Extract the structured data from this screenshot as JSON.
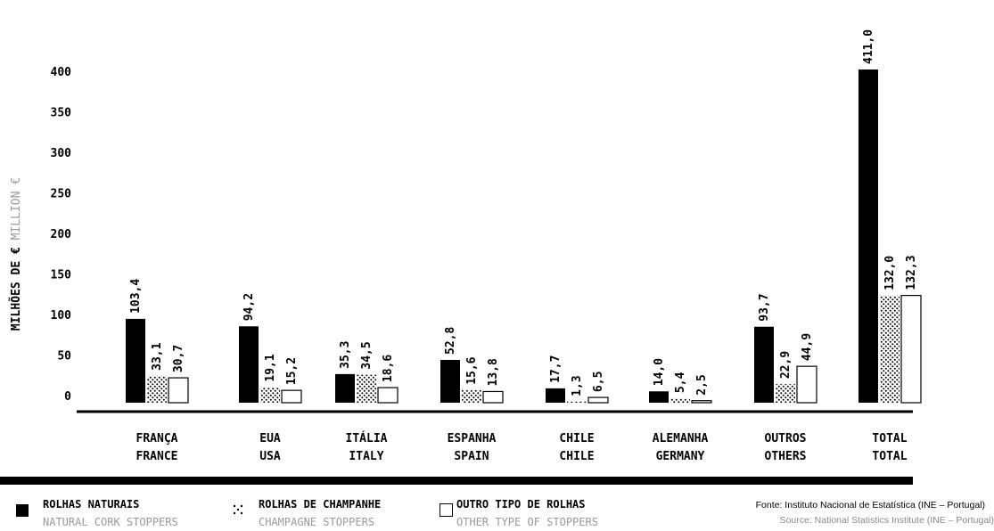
{
  "chart_data": {
    "type": "bar",
    "ylabel": "MILHÕES DE €",
    "ylabel_sub": "MILLION €",
    "ylim": [
      0,
      450
    ],
    "yticks": [
      0,
      50,
      100,
      150,
      200,
      250,
      300,
      350,
      400
    ],
    "categories": [
      "FRANÇA",
      "EUA",
      "ITÁLIA",
      "ESPANHA",
      "CHILE",
      "ALEMANHA",
      "OUTROS",
      "TOTAL"
    ],
    "categories_en": [
      "FRANCE",
      "USA",
      "ITALY",
      "SPAIN",
      "CHILE",
      "GERMANY",
      "OTHERS",
      "TOTAL"
    ],
    "series": [
      {
        "name": "ROLHAS NATURAIS",
        "values": [
          103.4,
          94.2,
          35.3,
          52.8,
          17.7,
          14.0,
          93.7,
          411.0
        ],
        "labels": [
          "103,4",
          "94,2",
          "35,3",
          "52,8",
          "17,7",
          "14,0",
          "93,7",
          "411,0"
        ],
        "color": "#000000"
      },
      {
        "name": "ROLHAS DE CHAMPANHE",
        "values": [
          33.1,
          19.1,
          34.5,
          15.6,
          1.3,
          5.4,
          22.9,
          132.0
        ],
        "labels": [
          "33,1",
          "19,1",
          "34,5",
          "15,6",
          "1,3",
          "5,4",
          "22,9",
          "132,0"
        ],
        "color": "dotted"
      },
      {
        "name": "OUTRO TIPO DE ROLHAS",
        "values": [
          30.7,
          15.2,
          18.6,
          13.8,
          6.5,
          2.5,
          44.9,
          132.3
        ],
        "labels": [
          "30,7",
          "15,2",
          "18,6",
          "13,8",
          "6,5",
          "2,5",
          "44,9",
          "132,3"
        ],
        "color": "#ffffff"
      }
    ],
    "grid": false,
    "legend_placement": "bottom"
  },
  "legend": [
    {
      "label": "ROLHAS NATURAIS",
      "sub": "NATURAL CORK STOPPERS"
    },
    {
      "label": "ROLHAS DE CHAMPANHE",
      "sub": "CHAMPAGNE STOPPERS"
    },
    {
      "label": "OUTRO TIPO DE ROLHAS",
      "sub": "OTHER TYPE OF STOPPERS"
    }
  ],
  "source": {
    "main": "Fonte: Instituto Nacional de Estatística (INE – Portugal)",
    "sub": "Source: National Statistics Institute (INE – Portugal)"
  }
}
